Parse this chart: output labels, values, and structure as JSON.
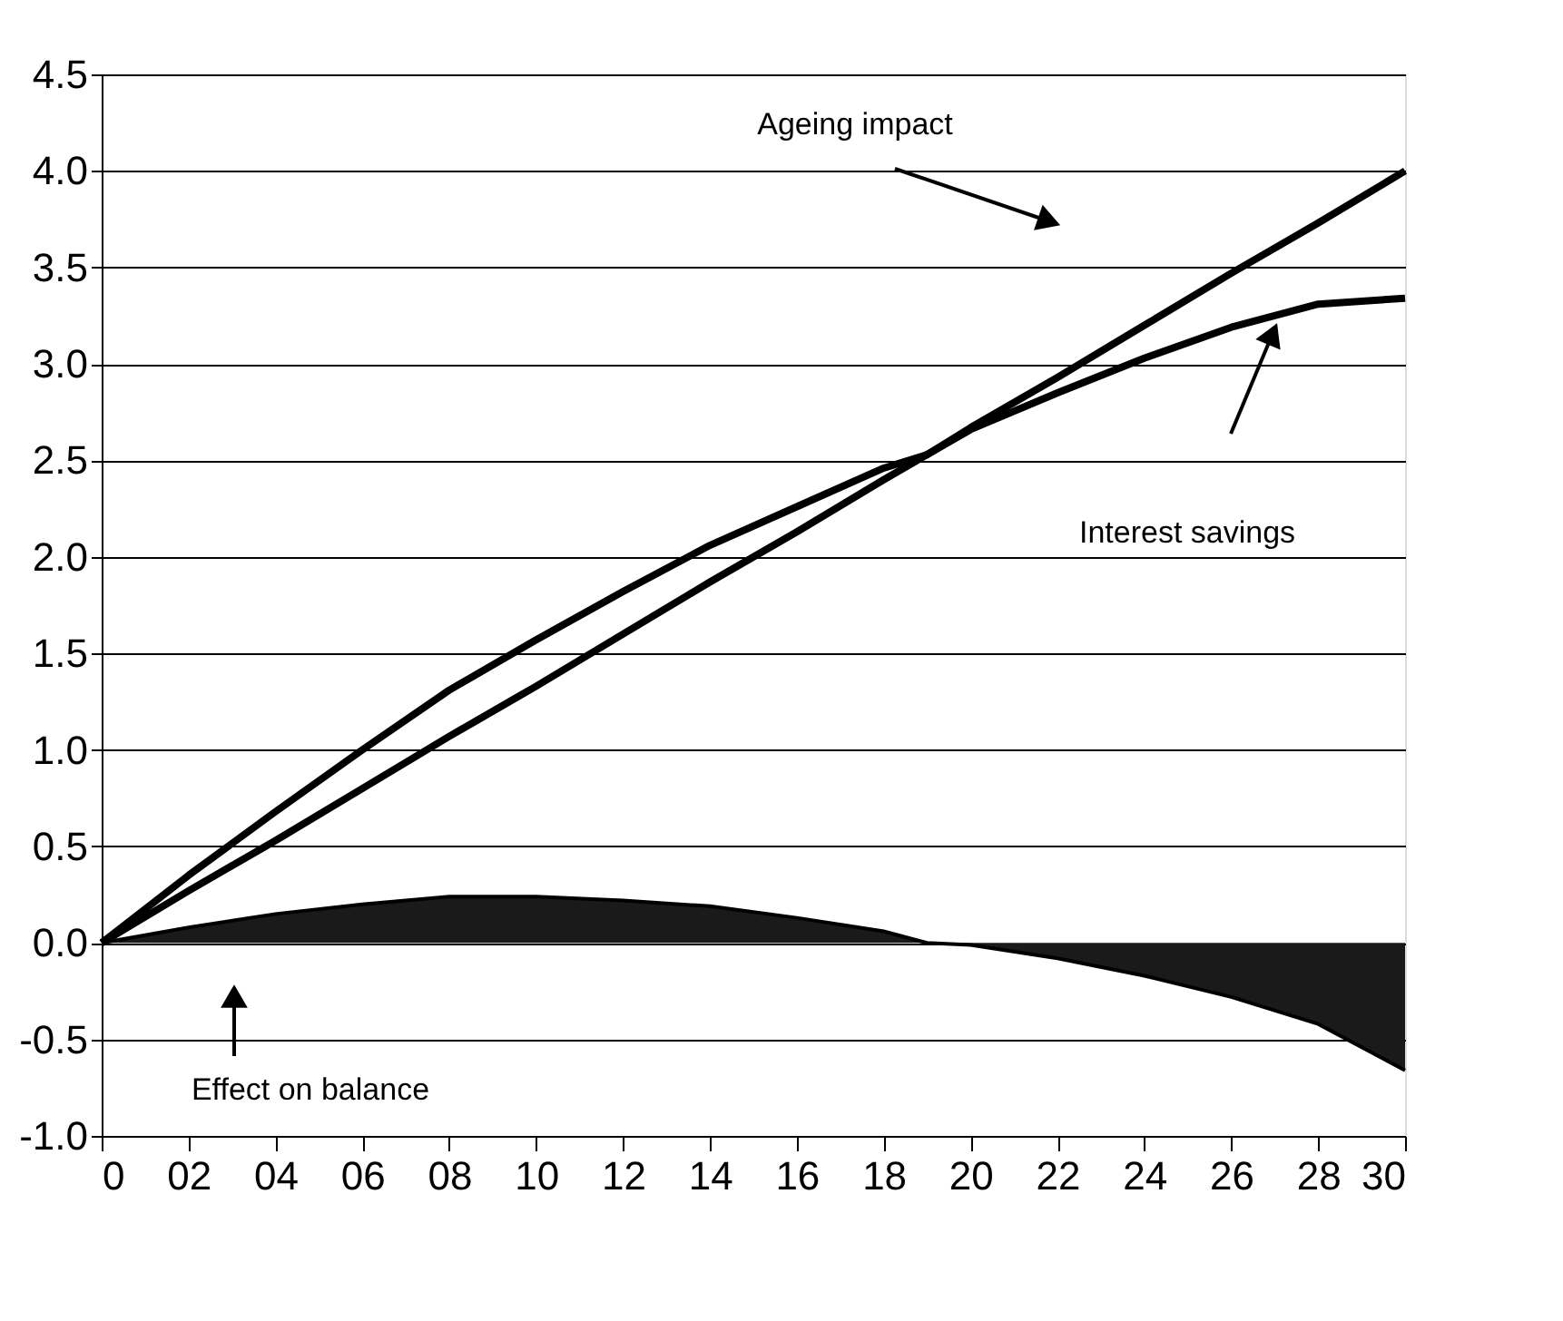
{
  "chart_data": {
    "type": "line",
    "x": [
      0,
      2,
      4,
      6,
      8,
      10,
      12,
      14,
      16,
      18,
      19,
      20,
      22,
      24,
      26,
      28,
      30
    ],
    "series": [
      {
        "color": "#000000",
        "values": [
          0,
          0.27,
          0.53,
          0.8,
          1.07,
          1.33,
          1.6,
          1.87,
          2.13,
          2.4,
          2.53,
          2.67,
          2.93,
          3.2,
          3.47,
          3.73,
          4.0
        ]
      },
      {
        "color": "#000000",
        "values": [
          0,
          0.35,
          0.68,
          1.0,
          1.31,
          1.57,
          1.82,
          2.06,
          2.26,
          2.46,
          2.53,
          2.66,
          2.85,
          3.03,
          3.19,
          3.31,
          3.34
        ]
      },
      {
        "type": "area",
        "color": "#1a1a1a",
        "values": [
          0,
          0.08,
          0.15,
          0.2,
          0.24,
          0.24,
          0.22,
          0.19,
          0.13,
          0.06,
          0,
          -0.01,
          -0.08,
          -0.17,
          -0.28,
          -0.42,
          -0.66
        ]
      }
    ],
    "annotations": [
      "Ageing impact",
      "Interest savings",
      "Effect on balance"
    ],
    "xlim": [
      0,
      30
    ],
    "xticks": [
      {
        "value": 0,
        "label": "0"
      },
      {
        "value": 2,
        "label": "02"
      },
      {
        "value": 4,
        "label": "04"
      },
      {
        "value": 6,
        "label": "06"
      },
      {
        "value": 8,
        "label": "08"
      },
      {
        "value": 10,
        "label": "10"
      },
      {
        "value": 12,
        "label": "12"
      },
      {
        "value": 14,
        "label": "14"
      },
      {
        "value": 16,
        "label": "16"
      },
      {
        "value": 18,
        "label": "18"
      },
      {
        "value": 20,
        "label": "20"
      },
      {
        "value": 22,
        "label": "22"
      },
      {
        "value": 24,
        "label": "24"
      },
      {
        "value": 26,
        "label": "26"
      },
      {
        "value": 28,
        "label": "28"
      },
      {
        "value": 30,
        "label": "30"
      }
    ],
    "ylim": [
      -1.0,
      4.5
    ],
    "yticks": [
      {
        "value": -1,
        "label": "-1.0"
      },
      {
        "value": -0.5,
        "label": "-0.5"
      },
      {
        "value": 0,
        "label": "0.0"
      },
      {
        "value": 0.5,
        "label": "0.5"
      },
      {
        "value": 1,
        "label": "1.0"
      },
      {
        "value": 1.5,
        "label": "1.5"
      },
      {
        "value": 2,
        "label": "2.0"
      },
      {
        "value": 2.5,
        "label": "2.5"
      },
      {
        "value": 3,
        "label": "3.0"
      },
      {
        "value": 3.5,
        "label": "3.5"
      },
      {
        "value": 4,
        "label": "4.0"
      },
      {
        "value": 4.5,
        "label": "4.5"
      }
    ],
    "grid": "y",
    "marker": "none",
    "line_style": "solid"
  }
}
